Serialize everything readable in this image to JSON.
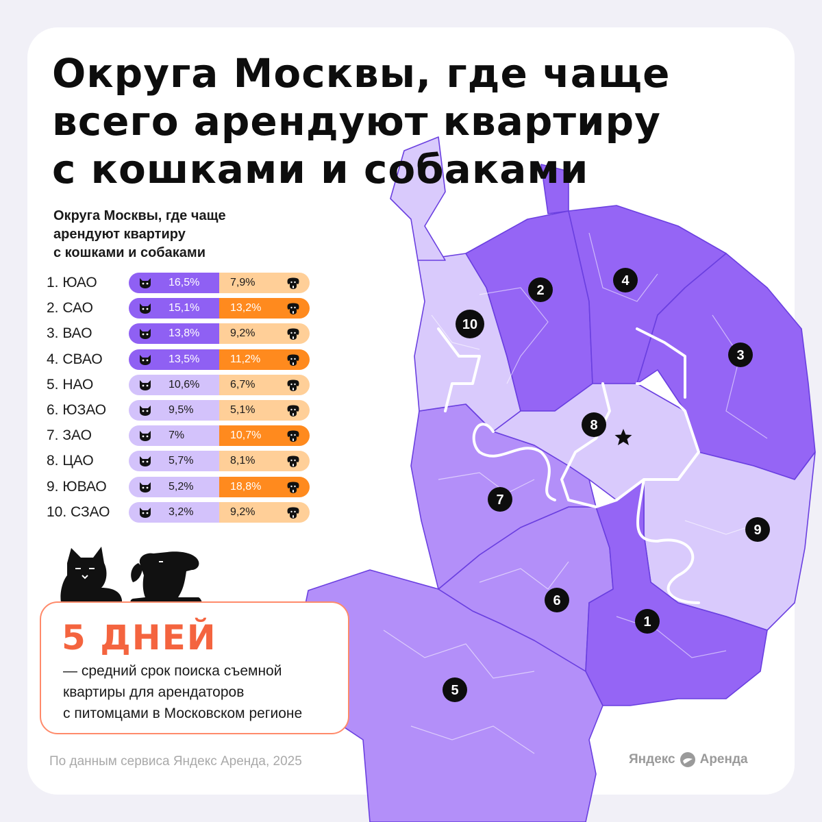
{
  "title": {
    "lines": [
      "Округа Москвы, где чаще",
      "всего арендуют квартиру",
      "с кошками и собаками"
    ]
  },
  "legend": {
    "subtitle_lines": [
      "Округа Москвы, где чаще",
      "арендуют квартиру",
      "с кошками и собаками"
    ],
    "cat_icon": "cat-face-icon",
    "dog_icon": "dog-face-icon",
    "rows": [
      {
        "label": "1. ЮАО",
        "cats": "16,5%",
        "dogs": "7,9%",
        "cat_shade": "dark",
        "dog_shade": "light"
      },
      {
        "label": "2. САО",
        "cats": "15,1%",
        "dogs": "13,2%",
        "cat_shade": "dark",
        "dog_shade": "dark"
      },
      {
        "label": "3. ВАО",
        "cats": "13,8%",
        "dogs": "9,2%",
        "cat_shade": "dark",
        "dog_shade": "light"
      },
      {
        "label": "4. СВАО",
        "cats": "13,5%",
        "dogs": "11,2%",
        "cat_shade": "dark",
        "dog_shade": "dark"
      },
      {
        "label": "5. НАО",
        "cats": "10,6%",
        "dogs": "6,7%",
        "cat_shade": "light",
        "dog_shade": "light"
      },
      {
        "label": "6. ЮЗАО",
        "cats": "9,5%",
        "dogs": "5,1%",
        "cat_shade": "light",
        "dog_shade": "light"
      },
      {
        "label": "7. ЗАО",
        "cats": "7%",
        "dogs": "10,7%",
        "cat_shade": "light",
        "dog_shade": "dark"
      },
      {
        "label": "8. ЦАО",
        "cats": "5,7%",
        "dogs": "8,1%",
        "cat_shade": "light",
        "dog_shade": "light"
      },
      {
        "label": "9. ЮВАО",
        "cats": "5,2%",
        "dogs": "18,8%",
        "cat_shade": "light",
        "dog_shade": "dark"
      },
      {
        "label": "10. СЗАО",
        "cats": "3,2%",
        "dogs": "9,2%",
        "cat_shade": "light",
        "dog_shade": "light"
      }
    ]
  },
  "colors": {
    "cat_dark": "#8f60f3",
    "cat_light": "#d3c2fb",
    "dog_dark": "#ff8a1e",
    "dog_light": "#ffcf98",
    "map_dark": "#9565f5",
    "map_mid": "#b38ff9",
    "map_light": "#d9cafc",
    "accent": "#f4643f"
  },
  "callout": {
    "headline": "5 ДНЕЙ",
    "lines": [
      "— средний срок поиска съемной",
      "квартиры для арендаторов",
      "с питомцами в Московском регионе"
    ]
  },
  "map": {
    "districts": [
      {
        "num": "1",
        "name": "ЮАО",
        "shade": "dark"
      },
      {
        "num": "2",
        "name": "САО",
        "shade": "dark"
      },
      {
        "num": "3",
        "name": "ВАО",
        "shade": "dark"
      },
      {
        "num": "4",
        "name": "СВАО",
        "shade": "dark"
      },
      {
        "num": "5",
        "name": "НАО",
        "shade": "mid"
      },
      {
        "num": "6",
        "name": "ЮЗАО",
        "shade": "mid"
      },
      {
        "num": "7",
        "name": "ЗАО",
        "shade": "mid"
      },
      {
        "num": "8",
        "name": "ЦАО",
        "shade": "light"
      },
      {
        "num": "9",
        "name": "ЮВАО",
        "shade": "light"
      },
      {
        "num": "10",
        "name": "СЗАО",
        "shade": "light"
      }
    ],
    "center_icon": "star-icon"
  },
  "source": "По данным сервиса Яндекс Аренда, 2025",
  "brand": {
    "word1": "Яндекс",
    "word2": "Аренда",
    "logo_icon": "yandex-arenda-logo-icon"
  }
}
